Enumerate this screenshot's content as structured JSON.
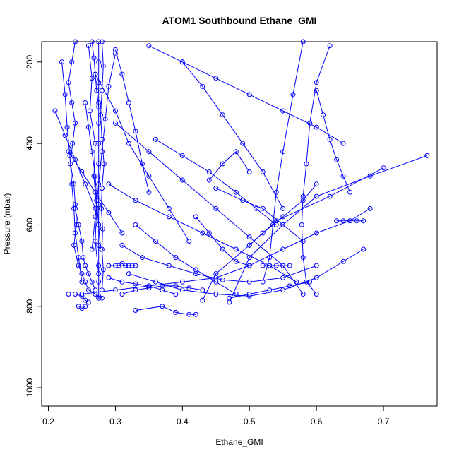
{
  "chart_data": {
    "type": "line",
    "title": "ATOM1 Southbound Ethane_GMI",
    "xlabel": "Ethane_GMI",
    "ylabel": "Pressure (mbar)",
    "xlim": [
      0.19,
      0.78
    ],
    "ylim": [
      1045,
      150
    ],
    "y_reversed": true,
    "x_ticks": [
      0.2,
      0.3,
      0.4,
      0.5,
      0.6,
      0.7
    ],
    "x_tick_labels": [
      "0.2",
      "0.3",
      "0.4",
      "0.5",
      "0.6",
      "0.7"
    ],
    "y_ticks": [
      200,
      400,
      600,
      800,
      1000
    ],
    "y_tick_labels": [
      "200",
      "400",
      "600",
      "800",
      "1000"
    ],
    "grid": false,
    "legend": "none",
    "colors": {
      "series": "#0000ff",
      "axis": "#000000"
    },
    "marker": "open-circle",
    "series": [
      {
        "x": [
          0.24,
          0.235,
          0.23,
          0.235,
          0.24,
          0.236,
          0.233,
          0.238,
          0.24,
          0.242,
          0.238,
          0.245,
          0.25,
          0.255,
          0.26,
          0.27,
          0.275,
          0.28
        ],
        "y": [
          150,
          200,
          250,
          300,
          350,
          400,
          450,
          500,
          550,
          600,
          650,
          700,
          720,
          740,
          760,
          770,
          775,
          780
        ]
      },
      {
        "x": [
          0.275,
          0.275,
          0.275,
          0.275,
          0.275,
          0.275,
          0.275,
          0.275,
          0.275,
          0.275,
          0.275,
          0.275,
          0.275,
          0.275
        ],
        "y": [
          150,
          200,
          250,
          300,
          350,
          400,
          450,
          500,
          550,
          600,
          650,
          700,
          740,
          780
        ]
      },
      {
        "x": [
          0.28,
          0.282,
          0.28,
          0.278,
          0.28,
          0.283,
          0.28,
          0.279,
          0.281,
          0.28,
          0.282,
          0.28
        ],
        "y": [
          150,
          210,
          270,
          330,
          390,
          450,
          510,
          560,
          610,
          660,
          710,
          760
        ]
      },
      {
        "x": [
          0.22,
          0.225,
          0.228,
          0.232,
          0.235,
          0.238,
          0.24,
          0.245,
          0.25
        ],
        "y": [
          200,
          280,
          360,
          430,
          500,
          560,
          620,
          680,
          740
        ]
      },
      {
        "x": [
          0.26,
          0.265,
          0.262,
          0.27,
          0.268,
          0.272,
          0.27,
          0.275
        ],
        "y": [
          160,
          240,
          320,
          400,
          480,
          560,
          640,
          720
        ]
      },
      {
        "x": [
          0.3,
          0.29,
          0.285,
          0.28,
          0.275,
          0.27,
          0.265
        ],
        "y": [
          180,
          260,
          340,
          420,
          500,
          580,
          660
        ]
      },
      {
        "x": [
          0.62,
          0.6,
          0.59,
          0.585,
          0.58,
          0.578,
          0.58,
          0.585,
          0.6
        ],
        "y": [
          160,
          250,
          350,
          450,
          530,
          600,
          680,
          740,
          770
        ]
      },
      {
        "x": [
          0.58,
          0.565,
          0.55,
          0.54,
          0.535,
          0.53,
          0.52
        ],
        "y": [
          150,
          280,
          420,
          520,
          600,
          680,
          740
        ]
      },
      {
        "x": [
          0.765,
          0.68,
          0.6,
          0.55,
          0.5,
          0.47
        ],
        "y": [
          430,
          480,
          530,
          600,
          680,
          790
        ]
      },
      {
        "x": [
          0.7,
          0.62,
          0.54,
          0.5,
          0.45,
          0.43
        ],
        "y": [
          460,
          530,
          590,
          650,
          720,
          785
        ]
      },
      {
        "x": [
          0.35,
          0.4,
          0.45,
          0.5,
          0.55,
          0.6,
          0.64
        ],
        "y": [
          160,
          200,
          240,
          280,
          320,
          360,
          400
        ]
      },
      {
        "x": [
          0.4,
          0.43,
          0.46,
          0.49,
          0.52,
          0.55
        ],
        "y": [
          200,
          260,
          330,
          400,
          470,
          560
        ]
      },
      {
        "x": [
          0.36,
          0.4,
          0.44,
          0.48,
          0.51,
          0.54
        ],
        "y": [
          390,
          430,
          470,
          520,
          560,
          600
        ]
      },
      {
        "x": [
          0.3,
          0.35,
          0.4,
          0.45,
          0.5,
          0.55,
          0.58
        ],
        "y": [
          350,
          420,
          490,
          560,
          630,
          700,
          770
        ]
      },
      {
        "x": [
          0.29,
          0.33,
          0.38,
          0.43,
          0.48,
          0.53,
          0.57
        ],
        "y": [
          500,
          540,
          580,
          620,
          660,
          700,
          740
        ]
      },
      {
        "x": [
          0.31,
          0.34,
          0.38,
          0.42,
          0.46,
          0.5,
          0.55,
          0.6
        ],
        "y": [
          650,
          680,
          700,
          720,
          735,
          740,
          730,
          700
        ]
      },
      {
        "x": [
          0.25,
          0.3,
          0.35,
          0.4,
          0.45,
          0.5,
          0.55,
          0.6,
          0.65,
          0.68
        ],
        "y": [
          770,
          760,
          750,
          740,
          730,
          700,
          660,
          620,
          590,
          560
        ]
      },
      {
        "x": [
          0.32,
          0.36,
          0.4,
          0.45,
          0.5,
          0.55,
          0.6,
          0.64,
          0.67
        ],
        "y": [
          720,
          740,
          760,
          770,
          775,
          760,
          730,
          690,
          660
        ]
      },
      {
        "x": [
          0.33,
          0.37,
          0.39,
          0.41,
          0.42
        ],
        "y": [
          810,
          800,
          815,
          820,
          820
        ]
      },
      {
        "x": [
          0.45,
          0.49,
          0.52,
          0.55,
          0.58
        ],
        "y": [
          510,
          540,
          560,
          600,
          640
        ]
      },
      {
        "x": [
          0.44,
          0.46,
          0.48,
          0.5
        ],
        "y": [
          490,
          450,
          420,
          470
        ]
      },
      {
        "x": [
          0.6,
          0.61,
          0.62,
          0.63,
          0.64,
          0.65
        ],
        "y": [
          270,
          330,
          390,
          440,
          480,
          520
        ]
      },
      {
        "x": [
          0.27,
          0.3,
          0.32,
          0.35,
          0.38,
          0.41
        ],
        "y": [
          230,
          320,
          400,
          480,
          560,
          640
        ]
      },
      {
        "x": [
          0.23,
          0.25,
          0.27,
          0.29,
          0.31
        ],
        "y": [
          420,
          470,
          520,
          570,
          620
        ]
      },
      {
        "x": [
          0.21,
          0.225,
          0.24,
          0.255,
          0.27
        ],
        "y": [
          320,
          380,
          440,
          500,
          560
        ]
      },
      {
        "x": [
          0.255,
          0.26,
          0.265,
          0.27,
          0.272,
          0.275,
          0.278
        ],
        "y": [
          300,
          360,
          420,
          480,
          540,
          600,
          660
        ]
      },
      {
        "x": [
          0.24,
          0.245,
          0.25,
          0.252,
          0.255,
          0.26,
          0.265,
          0.27
        ],
        "y": [
          560,
          600,
          640,
          680,
          700,
          720,
          740,
          760
        ]
      },
      {
        "x": [
          0.23,
          0.24,
          0.25,
          0.255,
          0.26
        ],
        "y": [
          770,
          770,
          775,
          785,
          790
        ]
      },
      {
        "x": [
          0.245,
          0.25,
          0.255
        ],
        "y": [
          800,
          805,
          800
        ]
      },
      {
        "x": [
          0.29,
          0.3,
          0.305,
          0.31,
          0.315,
          0.32,
          0.325,
          0.33
        ],
        "y": [
          700,
          700,
          700,
          695,
          700,
          700,
          700,
          700
        ]
      },
      {
        "x": [
          0.31,
          0.33,
          0.35,
          0.37,
          0.39,
          0.41,
          0.43
        ],
        "y": [
          770,
          760,
          755,
          750,
          750,
          755,
          760
        ]
      },
      {
        "x": [
          0.29,
          0.31,
          0.33,
          0.35,
          0.37,
          0.39
        ],
        "y": [
          730,
          740,
          745,
          750,
          760,
          770
        ]
      },
      {
        "x": [
          0.52,
          0.53,
          0.54,
          0.55,
          0.56
        ],
        "y": [
          700,
          700,
          700,
          700,
          700
        ]
      },
      {
        "x": [
          0.42,
          0.44,
          0.46,
          0.48,
          0.5
        ],
        "y": [
          580,
          620,
          660,
          690,
          700
        ]
      },
      {
        "x": [
          0.5,
          0.52,
          0.55,
          0.58,
          0.6
        ],
        "y": [
          650,
          620,
          580,
          540,
          500
        ]
      },
      {
        "x": [
          0.63,
          0.64,
          0.65,
          0.66,
          0.67
        ],
        "y": [
          590,
          590,
          590,
          590,
          590
        ]
      },
      {
        "x": [
          0.47,
          0.5,
          0.53,
          0.56,
          0.59
        ],
        "y": [
          780,
          770,
          760,
          750,
          740
        ]
      },
      {
        "x": [
          0.3,
          0.31,
          0.32,
          0.33,
          0.34,
          0.35
        ],
        "y": [
          170,
          230,
          300,
          370,
          450,
          520
        ]
      },
      {
        "x": [
          0.265,
          0.268,
          0.27,
          0.272,
          0.275
        ],
        "y": [
          150,
          190,
          230,
          270,
          310
        ]
      },
      {
        "x": [
          0.33,
          0.36,
          0.39,
          0.42,
          0.45,
          0.48
        ],
        "y": [
          600,
          640,
          680,
          710,
          740,
          770
        ]
      }
    ]
  }
}
